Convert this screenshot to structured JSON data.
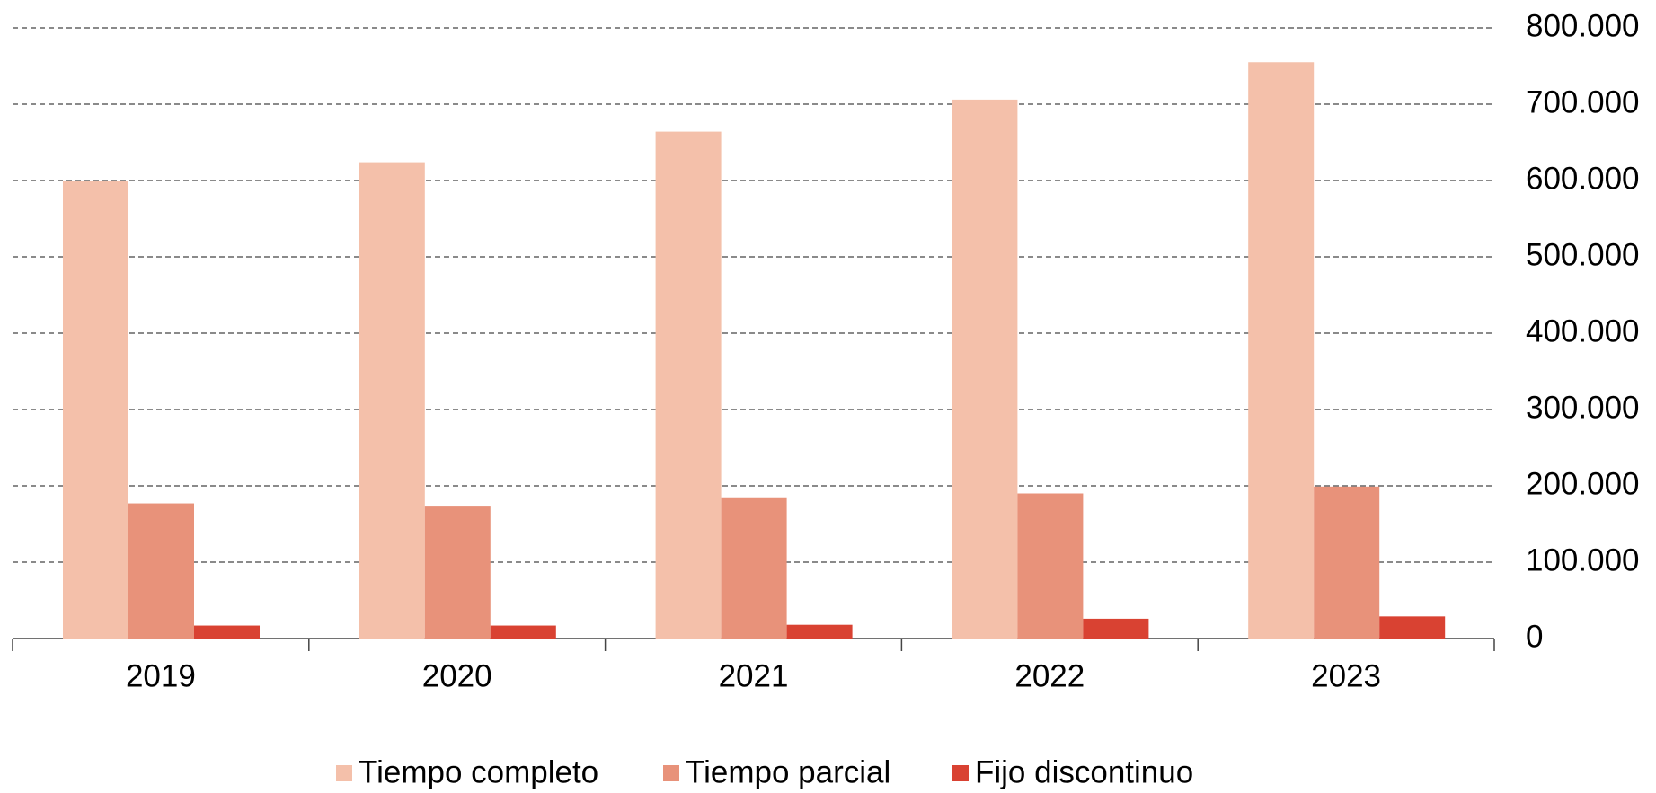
{
  "chart_data": {
    "type": "bar",
    "categories": [
      "2019",
      "2020",
      "2021",
      "2022",
      "2023"
    ],
    "series": [
      {
        "name": "Tiempo completo",
        "color": "#f4c0aa",
        "values": [
          600000,
          624000,
          664000,
          706000,
          755000
        ]
      },
      {
        "name": "Tiempo parcial",
        "color": "#e8927a",
        "values": [
          177000,
          174000,
          185000,
          190000,
          199000
        ]
      },
      {
        "name": "Fijo discontinuo",
        "color": "#d94232",
        "values": [
          17000,
          17000,
          18000,
          26000,
          29000
        ]
      }
    ],
    "ylim": [
      0,
      800000
    ],
    "yticks": [
      0,
      {
        "value": 100000,
        "label": "100.000"
      },
      {
        "value": 200000,
        "label": "200.000"
      },
      {
        "value": 300000,
        "label": "300.000"
      },
      {
        "value": 400000,
        "label": "400.000"
      },
      {
        "value": 500000,
        "label": "500.000"
      },
      {
        "value": 600000,
        "label": "600.000"
      },
      {
        "value": 700000,
        "label": "700.000"
      },
      {
        "value": 800000,
        "label": "800.000"
      }
    ],
    "grid": true,
    "legend": "bottom"
  }
}
